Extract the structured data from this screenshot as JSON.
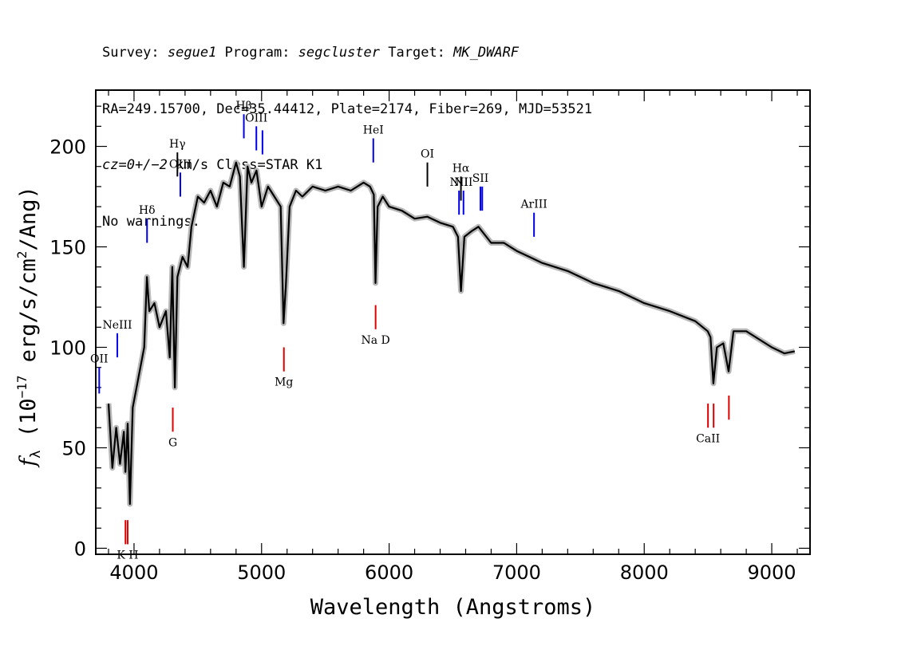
{
  "header": {
    "line1": [
      {
        "text": "Survey: ",
        "italic": false
      },
      {
        "text": "segue1",
        "italic": true
      },
      {
        "text": " Program: ",
        "italic": false
      },
      {
        "text": "segcluster",
        "italic": true
      },
      {
        "text": " Target: ",
        "italic": false
      },
      {
        "text": "MK_DWARF",
        "italic": true
      }
    ],
    "line2": "RA=249.15700, Dec=35.44412, Plate=2174, Fiber=269, MJD=53521",
    "line3": [
      {
        "text": "cz=0+/−2",
        "italic": true
      },
      {
        "text": " km/s Class=STAR K1",
        "italic": false
      }
    ],
    "line4": "No warnings."
  },
  "chart_data": {
    "type": "line",
    "xlabel": "Wavelength (Angstroms)",
    "ylabel": "f_λ (10^-17 erg/s/cm^2/Ang)",
    "xlim": [
      3700,
      9300
    ],
    "ylim": [
      -3,
      228
    ],
    "xticks": [
      4000,
      5000,
      6000,
      7000,
      8000,
      9000
    ],
    "yticks": [
      0,
      50,
      100,
      150,
      200
    ],
    "grid": false,
    "series": [
      {
        "color": "#000000",
        "x": [
          3800,
          3830,
          3860,
          3890,
          3920,
          3933,
          3950,
          3968,
          3990,
          4020,
          4050,
          4080,
          4101,
          4120,
          4160,
          4200,
          4250,
          4280,
          4300,
          4320,
          4340,
          4380,
          4420,
          4450,
          4500,
          4550,
          4600,
          4650,
          4700,
          4750,
          4800,
          4830,
          4861,
          4890,
          4920,
          4960,
          5000,
          5050,
          5100,
          5150,
          5172,
          5190,
          5220,
          5270,
          5320,
          5400,
          5500,
          5600,
          5700,
          5800,
          5850,
          5880,
          5893,
          5910,
          5950,
          6000,
          6100,
          6200,
          6300,
          6400,
          6500,
          6540,
          6563,
          6590,
          6650,
          6700,
          6800,
          6900,
          7000,
          7100,
          7200,
          7400,
          7600,
          7800,
          8000,
          8200,
          8400,
          8498,
          8520,
          8542,
          8570,
          8620,
          8662,
          8700,
          8800,
          9000,
          9100,
          9180
        ],
        "values": [
          72,
          40,
          60,
          42,
          58,
          38,
          62,
          22,
          70,
          80,
          90,
          100,
          135,
          118,
          122,
          110,
          118,
          95,
          140,
          80,
          135,
          145,
          140,
          160,
          175,
          172,
          178,
          170,
          182,
          180,
          192,
          185,
          140,
          190,
          182,
          188,
          170,
          180,
          175,
          170,
          112,
          130,
          170,
          178,
          175,
          180,
          178,
          180,
          178,
          182,
          180,
          176,
          132,
          170,
          175,
          170,
          168,
          164,
          165,
          162,
          160,
          155,
          128,
          155,
          158,
          160,
          152,
          152,
          148,
          145,
          142,
          138,
          132,
          128,
          122,
          118,
          113,
          108,
          105,
          82,
          100,
          102,
          88,
          108,
          108,
          100,
          97,
          98
        ]
      }
    ],
    "lines": [
      {
        "label": "OII",
        "wavelength": 3727,
        "color": "blue",
        "y1": 77,
        "y2": 90
      },
      {
        "label": "NeIII",
        "wavelength": 3869,
        "color": "blue",
        "y1": 95,
        "y2": 107
      },
      {
        "label": "Hδ",
        "wavelength": 4102,
        "color": "blue",
        "y1": 152,
        "y2": 164
      },
      {
        "label": "Hγ",
        "wavelength": 4340,
        "color": "black",
        "y1": 185,
        "y2": 197
      },
      {
        "label": "OIII",
        "wavelength": 4363,
        "color": "blue",
        "y1": 175,
        "y2": 187
      },
      {
        "label": "Hβ",
        "wavelength": 4861,
        "color": "blue",
        "y1": 204,
        "y2": 216
      },
      {
        "label": "OIII",
        "wavelength": 4959,
        "color": "blue",
        "y1": 198,
        "y2": 210
      },
      {
        "label": "",
        "wavelength": 5007,
        "color": "blue",
        "y1": 196,
        "y2": 208
      },
      {
        "label": "HeI",
        "wavelength": 5876,
        "color": "blue",
        "y1": 192,
        "y2": 204
      },
      {
        "label": "OI",
        "wavelength": 6300,
        "color": "black",
        "y1": 180,
        "y2": 192
      },
      {
        "label": "NII",
        "wavelength": 6548,
        "color": "blue",
        "y1": 166,
        "y2": 178
      },
      {
        "label": "Hα",
        "wavelength": 6563,
        "color": "black",
        "y1": 173,
        "y2": 185
      },
      {
        "label": "NII",
        "wavelength": 6583,
        "color": "blue",
        "y1": 166,
        "y2": 178
      },
      {
        "label": "SII",
        "wavelength": 6716,
        "color": "blue",
        "y1": 168,
        "y2": 180
      },
      {
        "label": "",
        "wavelength": 6730,
        "color": "blue",
        "y1": 168,
        "y2": 180
      },
      {
        "label": "ArIII",
        "wavelength": 7136,
        "color": "blue",
        "y1": 155,
        "y2": 167
      },
      {
        "label": "K H",
        "wavelength": 3950,
        "color": "red",
        "y1": 2,
        "y2": 14
      },
      {
        "label": "",
        "wavelength": 3933,
        "color": "red",
        "y1": 2,
        "y2": 14
      },
      {
        "label": "G",
        "wavelength": 4304,
        "color": "red",
        "y1": 58,
        "y2": 70
      },
      {
        "label": "Mg",
        "wavelength": 5175,
        "color": "red",
        "y1": 88,
        "y2": 100
      },
      {
        "label": "Na D",
        "wavelength": 5894,
        "color": "red",
        "y1": 109,
        "y2": 121
      },
      {
        "label": "CaII",
        "wavelength": 8500,
        "color": "red",
        "y1": 60,
        "y2": 72
      },
      {
        "label": "",
        "wavelength": 8544,
        "color": "red",
        "y1": 60,
        "y2": 72
      },
      {
        "label": "",
        "wavelength": 8664,
        "color": "red",
        "y1": 64,
        "y2": 76
      }
    ]
  }
}
